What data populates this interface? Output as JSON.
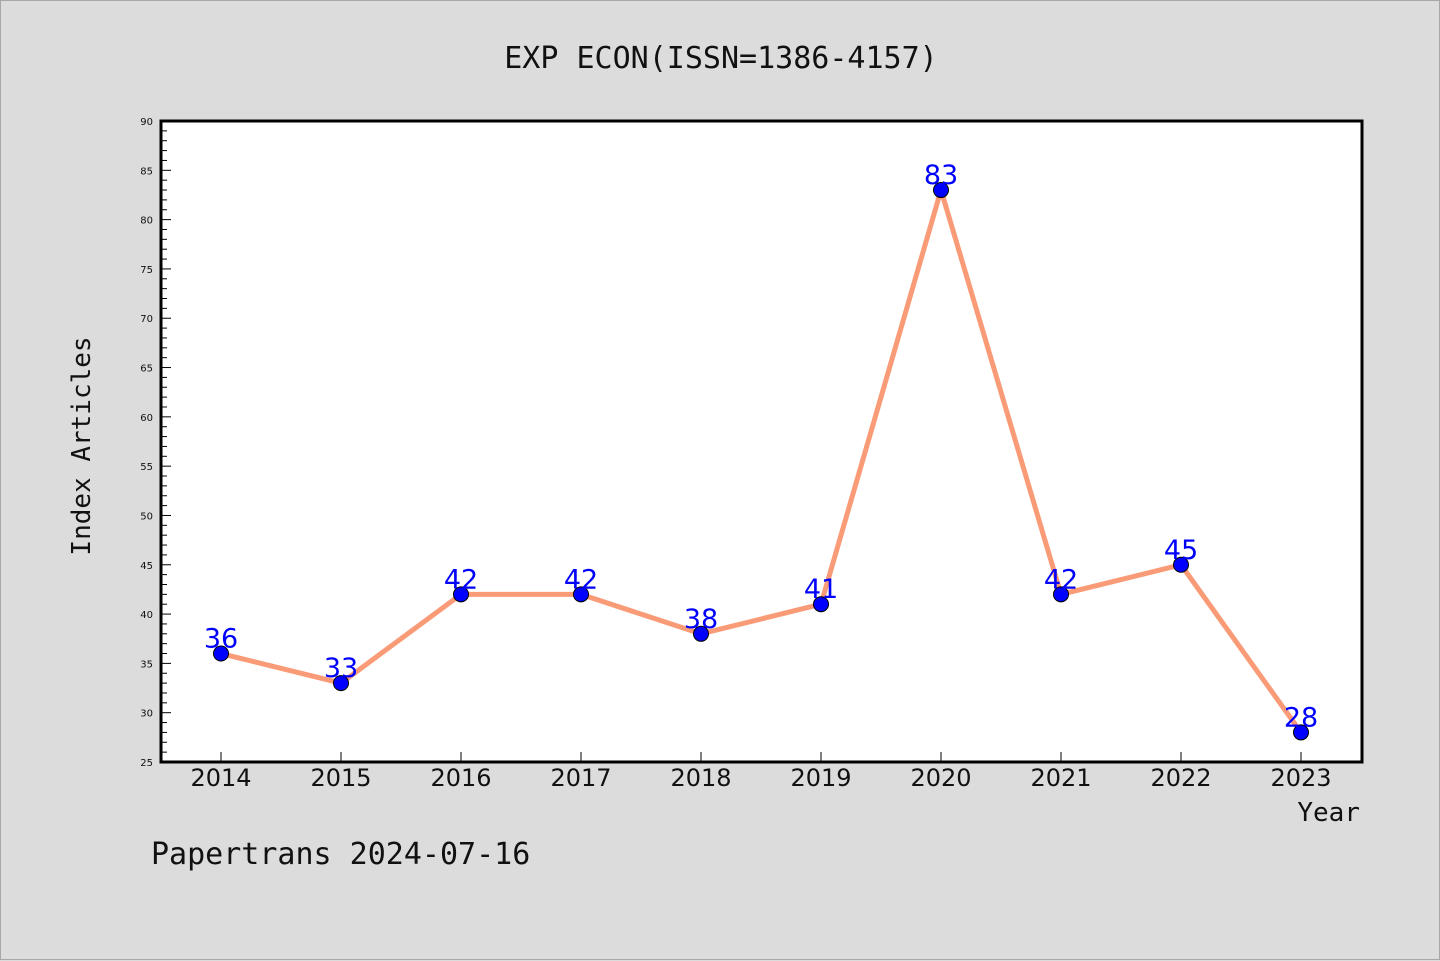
{
  "chart_data": {
    "type": "line",
    "title": "EXP ECON(ISSN=1386-4157)",
    "xlabel": "Year",
    "ylabel": "Index Articles",
    "categories": [
      "2014",
      "2015",
      "2016",
      "2017",
      "2018",
      "2019",
      "2020",
      "2021",
      "2022",
      "2023"
    ],
    "values": [
      36,
      33,
      42,
      42,
      38,
      41,
      83,
      42,
      45,
      28
    ],
    "data_labels": [
      "36",
      "33",
      "42",
      "42",
      "38",
      "41",
      "83",
      "42",
      "45",
      "28"
    ],
    "yticks": [
      "25",
      "30",
      "35",
      "40",
      "45",
      "50",
      "55",
      "60",
      "65",
      "70",
      "75",
      "80",
      "85",
      "90"
    ],
    "ylim": [
      25,
      90
    ],
    "grid": false,
    "legend": "none",
    "colors": {
      "line": "#fa9b78",
      "marker": "#0000ff",
      "data_label": "#0000ff",
      "background": "#dcdcdc",
      "plot_area": "#ffffff"
    }
  },
  "footer": {
    "text": "Papertrans 2024-07-16"
  }
}
